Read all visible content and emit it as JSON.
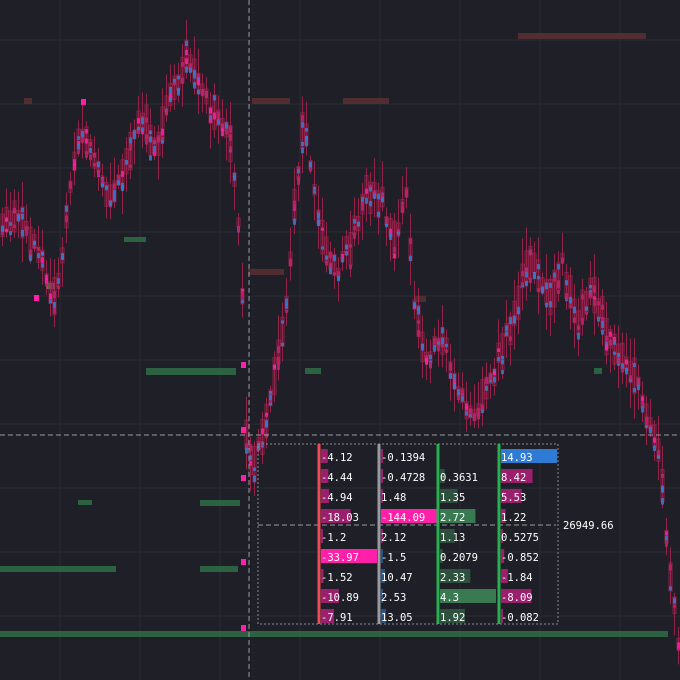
{
  "colors": {
    "background": "#1f1f27",
    "grid": "#2b2b35",
    "candle_body": "#ff2d7a",
    "candle_accent_blue": "#2e7bd6",
    "candle_accent_pink": "#ff1fa8",
    "volume_bar_green": "#2f6d46",
    "volume_bar_red": "#5a2f33",
    "crosshair": "#9a9aa3",
    "col_red": "#f04a5a",
    "col_grey": "#9a9aa3",
    "col_green": "#27b04e",
    "highlight_pink": "#ff1fa8",
    "highlight_blue": "#2e7bd6"
  },
  "crosshair": {
    "price_label": "26949.66"
  },
  "chart_data": {
    "type": "table",
    "description_of_layout": "",
    "columns": [
      {
        "name": "",
        "values": [
          "-4.12",
          "-4.44",
          "-4.94",
          "-18.03",
          "-1.2",
          "-33.97",
          "-1.52",
          "-10.89",
          "-7.91"
        ],
        "magnitudes": [
          4.12,
          4.44,
          4.94,
          18.03,
          1.2,
          33.97,
          1.52,
          10.89,
          7.91
        ]
      },
      {
        "name": "",
        "values": [
          "-0.1394",
          "-0.4728",
          "1.48",
          "-144.09",
          "2.12",
          "-1.5",
          "10.47",
          "2.53",
          "13.05"
        ],
        "magnitudes": [
          0.1394,
          0.4728,
          1.48,
          144.09,
          2.12,
          1.5,
          10.47,
          2.53,
          13.05
        ]
      },
      {
        "name": "",
        "values": [
          "",
          "0.3631",
          "1.35",
          "2.72",
          "1.13",
          "0.2079",
          "2.33",
          "4.3",
          "1.92"
        ],
        "magnitudes": [
          0,
          0.3631,
          1.35,
          2.72,
          1.13,
          0.2079,
          2.33,
          4.3,
          1.92
        ]
      },
      {
        "name": "",
        "values": [
          "14.93",
          "8.42",
          "5.53",
          "1.22",
          "0.5275",
          "-0.852",
          "-1.84",
          "-8.09",
          "-0.082"
        ],
        "magnitudes": [
          14.93,
          8.42,
          5.53,
          1.22,
          0.5275,
          0.852,
          1.84,
          8.09,
          0.082
        ]
      }
    ]
  }
}
